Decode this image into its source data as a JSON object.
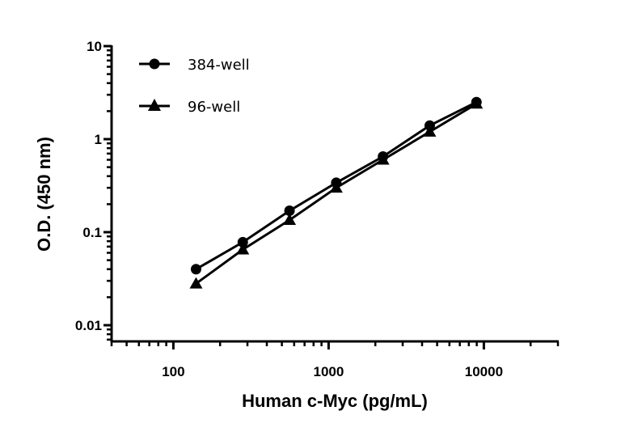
{
  "chart_data": {
    "type": "line",
    "title": "",
    "xlabel": "Human c-Myc (pg/mL)",
    "ylabel": "O.D. (450 nm)",
    "xscale": "log",
    "yscale": "log",
    "xlim": [
      40,
      30000
    ],
    "ylim": [
      0.007,
      10
    ],
    "xticks": [
      {
        "value": 100,
        "label": "100"
      },
      {
        "value": 1000,
        "label": "1000"
      },
      {
        "value": 10000,
        "label": "10000"
      }
    ],
    "yticks": [
      {
        "value": 0.01,
        "label": "0.01"
      },
      {
        "value": 0.1,
        "label": "0.1"
      },
      {
        "value": 1,
        "label": "1"
      },
      {
        "value": 10,
        "label": "10"
      }
    ],
    "grid": false,
    "legend_position": "top-left",
    "x": [
      140,
      280,
      560,
      1120,
      2240,
      4480,
      8960
    ],
    "series": [
      {
        "name": "384-well",
        "marker": "circle",
        "color": "#000000",
        "values": [
          0.04,
          0.078,
          0.17,
          0.34,
          0.65,
          1.4,
          2.5
        ]
      },
      {
        "name": "96-well",
        "marker": "triangle",
        "color": "#000000",
        "values": [
          0.028,
          0.065,
          0.135,
          0.3,
          0.6,
          1.2,
          2.4
        ]
      }
    ]
  }
}
